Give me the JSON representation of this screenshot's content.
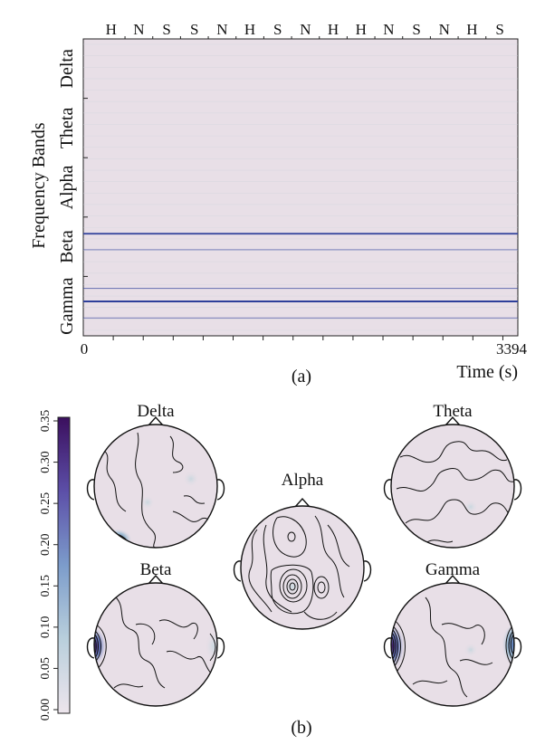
{
  "chart_data": [
    {
      "panel": "(a)",
      "type": "heatmap",
      "title": "",
      "xlabel": "Time (s)",
      "ylabel": "Frequency Bands",
      "x_ticks": [
        "0",
        "3394"
      ],
      "xlim": [
        0,
        3394
      ],
      "emotion_labels": [
        "H",
        "N",
        "S",
        "S",
        "N",
        "H",
        "S",
        "N",
        "H",
        "H",
        "N",
        "S",
        "N",
        "H",
        "S"
      ],
      "rows": [
        "Delta",
        "Theta",
        "Alpha",
        "Beta",
        "Gamma"
      ],
      "highlighted_lines": [
        {
          "band": "Beta",
          "strength": 0.9
        },
        {
          "band": "Beta",
          "strength": 0.35
        },
        {
          "band": "Gamma",
          "strength": 0.4
        },
        {
          "band": "Gamma",
          "strength": 1.0
        },
        {
          "band": "Gamma",
          "strength": 0.3
        }
      ],
      "background_color": "#e8dfe7",
      "line_color": "#2e3f9a"
    },
    {
      "panel": "(b)",
      "type": "heatmap",
      "subtype": "scalp topomaps",
      "colorbar": {
        "min": 0.0,
        "max": 0.35,
        "ticks": [
          "0.00",
          "0.05",
          "0.10",
          "0.15",
          "0.20",
          "0.25",
          "0.30",
          "0.35"
        ],
        "colors": [
          "#ede5ec",
          "#a9c3d3",
          "#6a8fc4",
          "#5a4ea6",
          "#3b0f5e"
        ]
      },
      "topomaps": [
        {
          "band": "Delta",
          "peak": 0.22,
          "peak_location": "left-posterior"
        },
        {
          "band": "Theta",
          "peak": 0.05,
          "peak_location": "none"
        },
        {
          "band": "Alpha",
          "peak": 0.06,
          "peak_location": "central"
        },
        {
          "band": "Beta",
          "peak": 0.3,
          "peak_location": "left-temporal"
        },
        {
          "band": "Gamma",
          "peak": 0.33,
          "peak_location": "bilateral-temporal"
        }
      ]
    }
  ],
  "captions": {
    "a": "(a)",
    "b": "(b)"
  }
}
